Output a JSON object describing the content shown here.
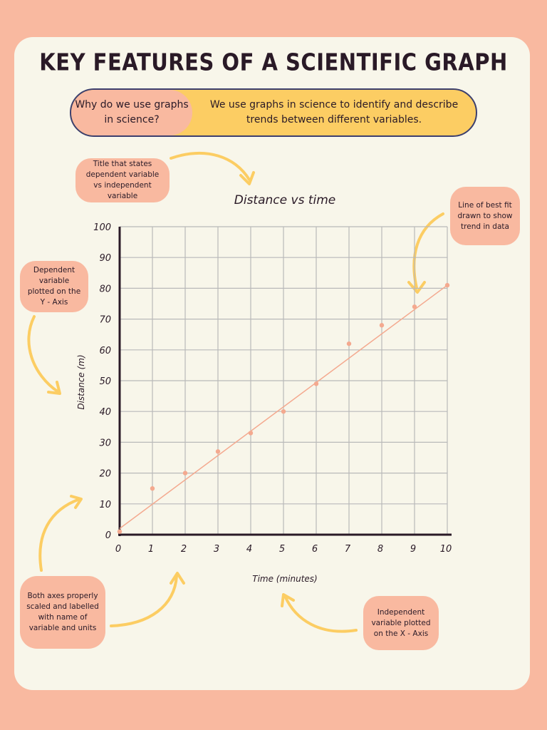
{
  "page": {
    "title": "KEY FEATURES OF A SCIENTIFIC GRAPH",
    "question": "Why do we use graphs in science?",
    "answer": "We use graphs in science to identify and describe trends between different variables."
  },
  "annotations": {
    "title_note": "Title that states dependent variable vs independent variable",
    "best_fit_note": "Line of best fit drawn to show trend in data",
    "y_axis_note": "Dependent variable plotted on the Y - Axis",
    "axes_note": "Both axes properly scaled and labelled with name of variable and units",
    "x_axis_note": "Independent variable plotted on the X - Axis"
  },
  "colors": {
    "accent_yellow": "#fccd63",
    "salmon": "#f9b9a0",
    "point": "#f4a98f",
    "grid": "#b9b9b9",
    "text": "#2a1a27"
  },
  "chart_data": {
    "type": "scatter",
    "title": "Distance vs time",
    "xlabel": "Time (minutes)",
    "ylabel": "Distance (m)",
    "xlim": [
      0,
      10
    ],
    "ylim": [
      0,
      100
    ],
    "x_ticks": [
      0,
      1,
      2,
      3,
      4,
      5,
      6,
      7,
      8,
      9,
      10
    ],
    "y_ticks": [
      0,
      10,
      20,
      30,
      40,
      50,
      60,
      70,
      80,
      90,
      100
    ],
    "grid": true,
    "points": [
      {
        "x": 0,
        "y": 1
      },
      {
        "x": 1,
        "y": 15
      },
      {
        "x": 2,
        "y": 20
      },
      {
        "x": 3,
        "y": 27
      },
      {
        "x": 4,
        "y": 33
      },
      {
        "x": 5,
        "y": 40
      },
      {
        "x": 6,
        "y": 49
      },
      {
        "x": 7,
        "y": 62
      },
      {
        "x": 8,
        "y": 68
      },
      {
        "x": 9,
        "y": 74
      },
      {
        "x": 10,
        "y": 81
      }
    ],
    "best_fit": {
      "x0": 0,
      "y0": 2,
      "x1": 10,
      "y1": 81
    }
  }
}
